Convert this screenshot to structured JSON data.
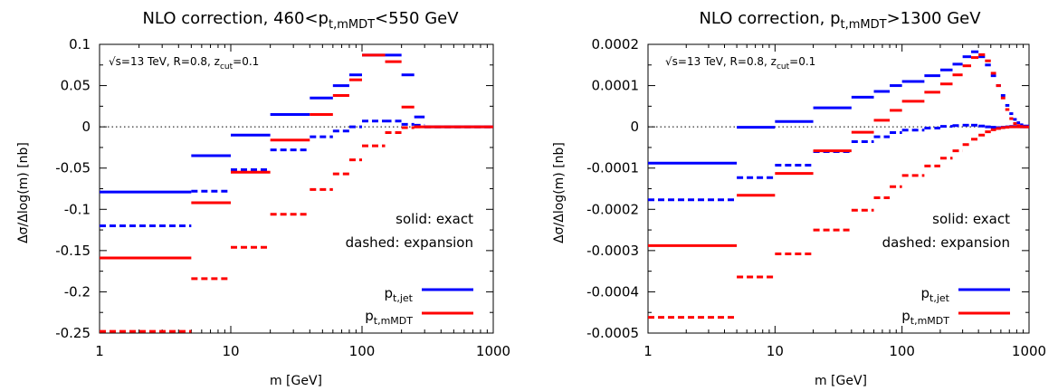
{
  "chart_data": [
    {
      "type": "step",
      "title_main": "NLO correction, 460<p",
      "title_sub": "t,mMDT",
      "title_tail": "<550 GeV",
      "xlabel": "m [GeV]",
      "ylabel": "Δσ/Δlog(m) [nb]",
      "x_scale": "log",
      "xlim": [
        1,
        1000
      ],
      "ylim": [
        -0.25,
        0.1
      ],
      "xticks": [
        1,
        10,
        100,
        1000
      ],
      "xtick_labels": [
        "1",
        "10",
        "100",
        "1000"
      ],
      "yticks": [
        0.1,
        0.05,
        0,
        -0.05,
        -0.1,
        -0.15,
        -0.2,
        -0.25
      ],
      "ytick_labels": [
        "0.1",
        "0.05",
        "0",
        "-0.05",
        "-0.1",
        "-0.15",
        "-0.2",
        "-0.25"
      ],
      "annotation": {
        "main": "√s=13 TeV, R=0.8, z",
        "sub": "cut",
        "tail": "=0.1"
      },
      "note_solid": "solid: exact",
      "note_dashed": "dashed: expansion",
      "bins": [
        [
          1,
          5
        ],
        [
          5,
          10
        ],
        [
          10,
          20
        ],
        [
          20,
          40
        ],
        [
          40,
          60
        ],
        [
          60,
          80
        ],
        [
          80,
          100
        ],
        [
          100,
          150
        ],
        [
          150,
          200
        ],
        [
          200,
          250
        ],
        [
          250,
          300
        ],
        [
          300,
          1000
        ]
      ],
      "series": [
        {
          "key": "jet_exact",
          "color": "#0000ff",
          "style": "solid",
          "values": [
            -0.079,
            -0.035,
            -0.01,
            0.015,
            0.035,
            0.05,
            0.063,
            0.087,
            0.087,
            0.063,
            0.012,
            0
          ]
        },
        {
          "key": "jet_expansion",
          "color": "#0000ff",
          "style": "dashed",
          "values": [
            -0.12,
            -0.078,
            -0.052,
            -0.028,
            -0.012,
            -0.005,
            0.0,
            0.007,
            0.007,
            0.003,
            0.002,
            0
          ]
        },
        {
          "key": "mmdt_exact",
          "color": "#ff0000",
          "style": "solid",
          "values": [
            -0.159,
            -0.092,
            -0.055,
            -0.016,
            0.015,
            0.038,
            0.057,
            0.087,
            0.079,
            0.024,
            0.0,
            0
          ]
        },
        {
          "key": "mmdt_expansion",
          "color": "#ff0000",
          "style": "dashed",
          "values": [
            -0.248,
            -0.184,
            -0.146,
            -0.106,
            -0.076,
            -0.057,
            -0.04,
            -0.023,
            -0.007,
            -0.001,
            0.0,
            0
          ]
        }
      ],
      "legend": [
        {
          "main": "p",
          "sub": "t,jet",
          "color": "#0000ff"
        },
        {
          "main": "p",
          "sub": "t,mMDT",
          "color": "#ff0000"
        }
      ]
    },
    {
      "type": "step",
      "title_main": "NLO correction, p",
      "title_sub": "t,mMDT",
      "title_tail": ">1300 GeV",
      "xlabel": "m [GeV]",
      "ylabel": "Δσ/Δlog(m) [nb]",
      "x_scale": "log",
      "xlim": [
        1,
        1000
      ],
      "ylim": [
        -0.0005,
        0.0002
      ],
      "xticks": [
        1,
        10,
        100,
        1000
      ],
      "xtick_labels": [
        "1",
        "10",
        "100",
        "1000"
      ],
      "yticks": [
        0.0002,
        0.0001,
        0,
        -0.0001,
        -0.0002,
        -0.0003,
        -0.0004,
        -0.0005
      ],
      "ytick_labels": [
        "0.0002",
        "0.0001",
        "0",
        "-0.0001",
        "-0.0002",
        "-0.0003",
        "-0.0004",
        "-0.0005"
      ],
      "annotation": {
        "main": "√s=13 TeV, R=0.8, z",
        "sub": "cut",
        "tail": "=0.1"
      },
      "note_solid": "solid: exact",
      "note_dashed": "dashed: expansion",
      "bins": [
        [
          1,
          5
        ],
        [
          5,
          10
        ],
        [
          10,
          20
        ],
        [
          20,
          40
        ],
        [
          40,
          60
        ],
        [
          60,
          80
        ],
        [
          80,
          100
        ],
        [
          100,
          150
        ],
        [
          150,
          200
        ],
        [
          200,
          250
        ],
        [
          250,
          300
        ],
        [
          300,
          350
        ],
        [
          350,
          400
        ],
        [
          400,
          450
        ],
        [
          450,
          500
        ],
        [
          500,
          550
        ],
        [
          550,
          600
        ],
        [
          600,
          650
        ],
        [
          650,
          700
        ],
        [
          700,
          750
        ],
        [
          750,
          800
        ],
        [
          800,
          850
        ],
        [
          850,
          900
        ],
        [
          900,
          1000
        ]
      ],
      "series": [
        {
          "key": "jet_exact",
          "color": "#0000ff",
          "style": "solid",
          "values": [
            -8.8e-05,
            -1e-06,
            1.3e-05,
            4.6e-05,
            7.2e-05,
            8.6e-05,
            0.0001,
            0.00011,
            0.000124,
            0.000138,
            0.000152,
            0.00017,
            0.000182,
            0.00017,
            0.00015,
            0.000124,
            0.0001,
            7.6e-05,
            5.2e-05,
            3.2e-05,
            1.8e-05,
            1e-05,
            5e-06,
            2e-06
          ]
        },
        {
          "key": "jet_expansion",
          "color": "#0000ff",
          "style": "dashed",
          "values": [
            -0.000177,
            -0.000123,
            -9.3e-05,
            -6e-05,
            -3.6e-05,
            -2.4e-05,
            -1.4e-05,
            -8e-06,
            -3e-06,
            1e-06,
            3e-06,
            4e-06,
            4e-06,
            2e-06,
            0.0,
            -1e-06,
            -2e-06,
            -1e-06,
            0.0,
            1e-06,
            1e-06,
            1e-06,
            0.0,
            0.0
          ]
        },
        {
          "key": "mmdt_exact",
          "color": "#ff0000",
          "style": "solid",
          "values": [
            -0.000288,
            -0.000166,
            -0.000113,
            -5.8e-05,
            -1.3e-05,
            1.6e-05,
            4e-05,
            6.2e-05,
            8.4e-05,
            0.000104,
            0.000126,
            0.000148,
            0.000168,
            0.000175,
            0.00016,
            0.00013,
            0.0001,
            7e-05,
            4.2e-05,
            2e-05,
            8e-06,
            3e-06,
            1e-06,
            0.0
          ]
        },
        {
          "key": "mmdt_expansion",
          "color": "#ff0000",
          "style": "dashed",
          "values": [
            -0.000462,
            -0.000364,
            -0.000308,
            -0.00025,
            -0.000202,
            -0.000172,
            -0.000145,
            -0.000118,
            -9.5e-05,
            -7.6e-05,
            -5.8e-05,
            -4.3e-05,
            -3e-05,
            -2e-05,
            -1.2e-05,
            -7e-06,
            -4e-06,
            -2e-06,
            -1e-06,
            0.0,
            0.0,
            0.0,
            0.0,
            0.0
          ]
        }
      ],
      "legend": [
        {
          "main": "p",
          "sub": "t,jet",
          "color": "#0000ff"
        },
        {
          "main": "p",
          "sub": "t,mMDT",
          "color": "#ff0000"
        }
      ]
    }
  ]
}
